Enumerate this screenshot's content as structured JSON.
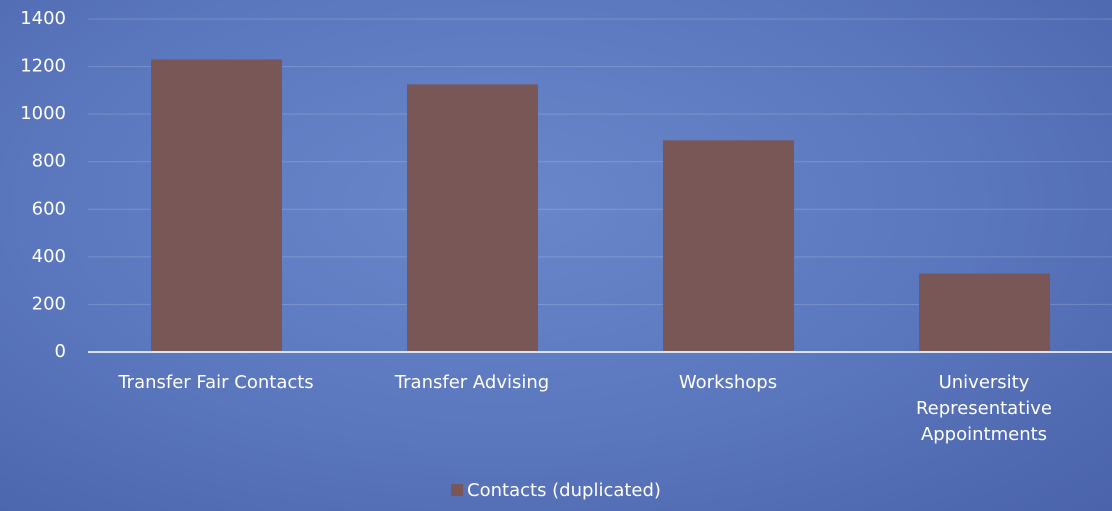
{
  "chart_data": {
    "type": "bar",
    "categories": [
      "Transfer Fair Contacts",
      "Transfer Advising",
      "Workshops",
      "University Representative Appointments"
    ],
    "series": [
      {
        "name": "Contacts (duplicated)",
        "color": "#7a5757",
        "values": [
          1230,
          1125,
          890,
          330
        ]
      }
    ],
    "ylim": [
      0,
      1400
    ],
    "yticks": [
      0,
      200,
      400,
      600,
      800,
      1000,
      1200,
      1400
    ],
    "grid": true,
    "legend": "bottom"
  }
}
